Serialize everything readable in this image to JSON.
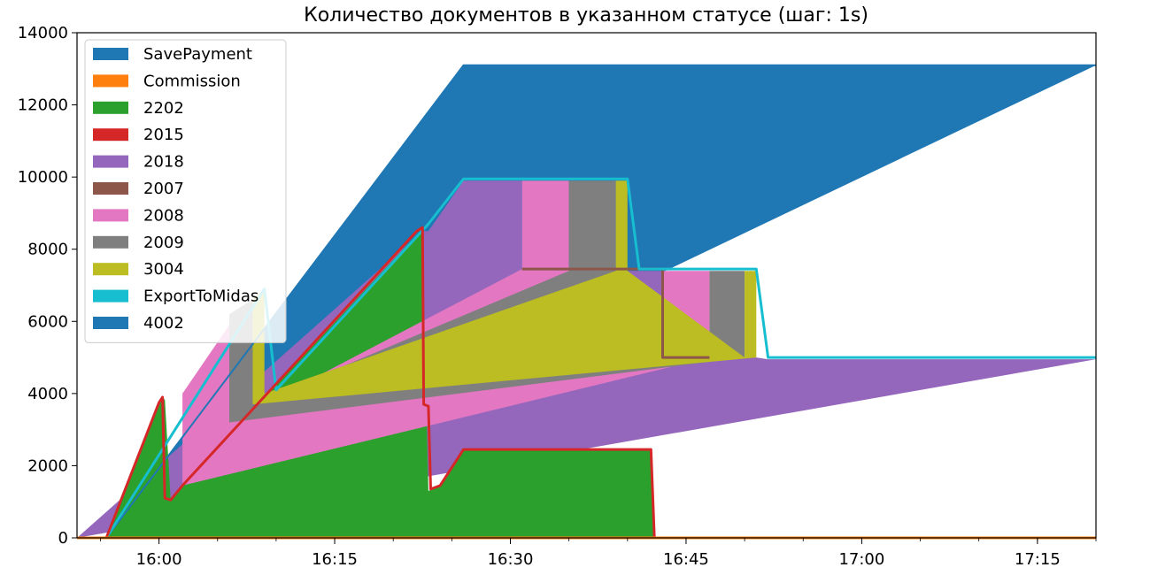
{
  "chart_data": {
    "type": "area",
    "title": "Количество документов в указанном статусе (шаг: 1s)",
    "xlabel": "",
    "ylabel": "",
    "x_axis": "time",
    "xlim": [
      "15:53",
      "17:20"
    ],
    "ylim": [
      0,
      14000
    ],
    "x_ticks": [
      "16:00",
      "16:15",
      "16:30",
      "16:45",
      "17:00",
      "17:15"
    ],
    "y_ticks": [
      0,
      2000,
      4000,
      6000,
      8000,
      10000,
      12000,
      14000
    ],
    "legend_position": "top-left",
    "grid": false,
    "series": [
      {
        "name": "SavePayment",
        "color": "#1f77b4",
        "type": "line",
        "points": [
          [
            "15:53",
            0
          ],
          [
            "15:55.5",
            0
          ],
          [
            "16:26",
            13100
          ],
          [
            "17:20",
            13100
          ]
        ]
      },
      {
        "name": "Commission",
        "color": "#ff7f0e",
        "type": "line",
        "points": [
          [
            "15:53",
            0
          ],
          [
            "17:20",
            0
          ]
        ]
      },
      {
        "name": "2202",
        "color": "#2ca02c",
        "type": "area",
        "points": [
          [
            "15:53",
            0
          ],
          [
            "15:55.5",
            0
          ],
          [
            "16:00",
            3750
          ],
          [
            "16:00.5",
            3850
          ],
          [
            "16:01",
            1050
          ],
          [
            "16:02",
            1450
          ],
          [
            "16:22",
            8400
          ],
          [
            "16:22.5",
            8500
          ],
          [
            "16:23",
            1300
          ],
          [
            "16:24",
            1450
          ],
          [
            "16:26",
            2450
          ],
          [
            "16:42",
            2450
          ],
          [
            "16:42.3",
            0
          ],
          [
            "17:20",
            0
          ]
        ]
      },
      {
        "name": "2015",
        "color": "#d62728",
        "type": "line",
        "points": [
          [
            "15:53",
            0
          ],
          [
            "15:55.5",
            0
          ],
          [
            "16:00",
            3750
          ],
          [
            "16:00.3",
            3900
          ],
          [
            "16:00.5",
            1100
          ],
          [
            "16:01",
            1050
          ],
          [
            "16:02",
            1450
          ],
          [
            "16:22",
            8500
          ],
          [
            "16:22.5",
            8600
          ],
          [
            "16:22.6",
            3700
          ],
          [
            "16:23",
            3650
          ],
          [
            "16:23.2",
            1350
          ],
          [
            "16:24",
            1450
          ],
          [
            "16:26",
            2450
          ],
          [
            "16:42",
            2450
          ],
          [
            "16:42.3",
            0
          ],
          [
            "17:20",
            0
          ]
        ]
      },
      {
        "name": "2018",
        "color": "#9467bd",
        "type": "area",
        "points": [
          [
            "15:53",
            0
          ],
          [
            "16:22.5",
            8500
          ],
          [
            "16:23",
            8500
          ],
          [
            "16:26",
            9900
          ],
          [
            "16:31",
            9900
          ],
          [
            "16:31",
            7400
          ],
          [
            "16:43",
            7400
          ],
          [
            "16:43",
            5000
          ],
          [
            "16:51",
            5000
          ],
          [
            "16:52",
            4950
          ],
          [
            "17:20",
            4950
          ]
        ]
      },
      {
        "name": "2007",
        "color": "#8c564b",
        "type": "line",
        "points": [
          [
            "16:31",
            7450
          ],
          [
            "16:43",
            7450
          ],
          [
            "16:43",
            5000
          ],
          [
            "16:47",
            5000
          ]
        ]
      },
      {
        "name": "2008",
        "color": "#e377c2",
        "type": "area",
        "points": [
          [
            "16:02",
            1450
          ],
          [
            "16:02",
            4000
          ],
          [
            "16:06",
            5900
          ],
          [
            "16:06",
            3200
          ],
          [
            "16:31",
            7450
          ],
          [
            "16:31",
            9900
          ],
          [
            "16:35",
            9900
          ],
          [
            "16:35",
            7400
          ],
          [
            "16:43",
            5000
          ],
          [
            "16:43",
            7400
          ],
          [
            "16:47",
            7400
          ],
          [
            "16:47",
            5000
          ]
        ]
      },
      {
        "name": "2009",
        "color": "#7f7f7f",
        "type": "area",
        "points": [
          [
            "16:06",
            3200
          ],
          [
            "16:06",
            6200
          ],
          [
            "16:08",
            6600
          ],
          [
            "16:08",
            3700
          ],
          [
            "16:35",
            7400
          ],
          [
            "16:35",
            9900
          ],
          [
            "16:39",
            9900
          ],
          [
            "16:39",
            7400
          ],
          [
            "16:47",
            5000
          ],
          [
            "16:47",
            7400
          ],
          [
            "16:50",
            7400
          ],
          [
            "16:50",
            5000
          ]
        ]
      },
      {
        "name": "3004",
        "color": "#bcbd22",
        "type": "area",
        "points": [
          [
            "16:08",
            3700
          ],
          [
            "16:08",
            6600
          ],
          [
            "16:09",
            6900
          ],
          [
            "16:09",
            4000
          ],
          [
            "16:39",
            7400
          ],
          [
            "16:39",
            9900
          ],
          [
            "16:40",
            9900
          ],
          [
            "16:40",
            7400
          ],
          [
            "16:50",
            5000
          ],
          [
            "16:50",
            7400
          ],
          [
            "16:51",
            7400
          ],
          [
            "16:51",
            5000
          ]
        ]
      },
      {
        "name": "ExportToMidas",
        "color": "#17becf",
        "type": "line",
        "points": [
          [
            "15:55.5",
            0
          ],
          [
            "16:09",
            6900
          ],
          [
            "16:10",
            4100
          ],
          [
            "16:23",
            8700
          ],
          [
            "16:26",
            9950
          ],
          [
            "16:40",
            9950
          ],
          [
            "16:41",
            7450
          ],
          [
            "16:51",
            7450
          ],
          [
            "16:52",
            5000
          ],
          [
            "17:20",
            5000
          ]
        ]
      },
      {
        "name": "4002",
        "color": "#1f77b4",
        "type": "area",
        "points": [
          [
            "15:55.5",
            0
          ],
          [
            "16:26",
            13100
          ],
          [
            "17:20",
            13100
          ]
        ]
      }
    ]
  },
  "legend": {
    "items": [
      {
        "label": "SavePayment",
        "color": "#1f77b4"
      },
      {
        "label": "Commission",
        "color": "#ff7f0e"
      },
      {
        "label": "2202",
        "color": "#2ca02c"
      },
      {
        "label": "2015",
        "color": "#d62728"
      },
      {
        "label": "2018",
        "color": "#9467bd"
      },
      {
        "label": "2007",
        "color": "#8c564b"
      },
      {
        "label": "2008",
        "color": "#e377c2"
      },
      {
        "label": "2009",
        "color": "#7f7f7f"
      },
      {
        "label": "3004",
        "color": "#bcbd22"
      },
      {
        "label": "ExportToMidas",
        "color": "#17becf"
      },
      {
        "label": "4002",
        "color": "#1f77b4"
      }
    ]
  }
}
